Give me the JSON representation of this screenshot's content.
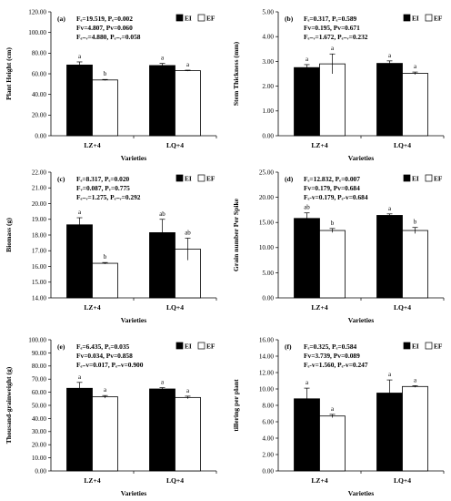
{
  "chart_data": [
    {
      "type": "bar",
      "panel": "(a)",
      "stats": [
        "Fₑ=19.519, Pₑ=0.002",
        "Fv=4.807, Pv=0.060",
        "Fₑ₋ᵥ=4.880, Pₑ₋ᵥ=0.058"
      ],
      "ylabel": "Plant Height (cm)",
      "xlabel": "Varieties",
      "ylim": [
        0,
        120
      ],
      "yticks": [
        "0.00",
        "20.00",
        "40.00",
        "60.00",
        "80.00",
        "100.00",
        "120.00"
      ],
      "categories": [
        "LZ+4",
        "LQ+4"
      ],
      "legend": [
        "EI",
        "EF"
      ],
      "series": [
        {
          "name": "EI",
          "values": [
            68.5,
            68.0
          ],
          "errors": [
            3.0,
            2.0
          ],
          "letters": [
            "a",
            "a"
          ]
        },
        {
          "name": "EF",
          "values": [
            54.0,
            63.0
          ],
          "errors": [
            0.5,
            0.5
          ],
          "letters": [
            "b",
            "a"
          ]
        }
      ]
    },
    {
      "type": "bar",
      "panel": "(b)",
      "stats": [
        "Fₑ=0.317, Pₑ=0.589",
        "Fv=0.195, Pv=0.671",
        "Fₑ₋ᵥ=1.672, Pₑ₋ᵥ=0.232"
      ],
      "ylabel": "Stem Thickness (mm)",
      "xlabel": "Varieties",
      "ylim": [
        0,
        5
      ],
      "yticks": [
        "0.00",
        "1.00",
        "2.00",
        "3.00",
        "4.00",
        "5.00"
      ],
      "categories": [
        "LZ+4",
        "LQ+4"
      ],
      "legend": [
        "EI",
        "EF"
      ],
      "series": [
        {
          "name": "EI",
          "values": [
            2.75,
            2.92
          ],
          "errors": [
            0.12,
            0.1
          ],
          "letters": [
            "a",
            "a"
          ]
        },
        {
          "name": "EF",
          "values": [
            2.9,
            2.52
          ],
          "errors": [
            0.4,
            0.05
          ],
          "letters": [
            "a",
            "a"
          ]
        }
      ]
    },
    {
      "type": "bar",
      "panel": "(c)",
      "stats": [
        "Fₑ=8.317, Pₑ=0.020",
        "Fᵥ=0.087, Pᵥ=0.775",
        "Fₑ₋ᵥ=1.275, Pₑ₋ᵥ=0.292"
      ],
      "ylabel": "Biomass (g)",
      "xlabel": "Varieties",
      "ylim": [
        14,
        22
      ],
      "yticks": [
        "14.00",
        "15.00",
        "16.00",
        "17.00",
        "18.00",
        "19.00",
        "20.00",
        "21.00",
        "22.00"
      ],
      "categories": [
        "LZ+4",
        "LQ+4"
      ],
      "legend": [
        "EI",
        "EF"
      ],
      "series": [
        {
          "name": "EI",
          "values": [
            18.65,
            18.15
          ],
          "errors": [
            0.45,
            0.85
          ],
          "letters": [
            "a",
            "ab"
          ]
        },
        {
          "name": "EF",
          "values": [
            16.2,
            17.1
          ],
          "errors": [
            0.05,
            0.7
          ],
          "letters": [
            "b",
            "ab"
          ]
        }
      ]
    },
    {
      "type": "bar",
      "panel": "(d)",
      "stats": [
        "Fₑ=12.832, Pₑ=0.007",
        "Fv=0.179, Pv=0.684",
        "Fₑ-v=0.179, Pₑ-v=0.684"
      ],
      "ylabel": "Grain number Per Spike",
      "xlabel": "Varieties",
      "ylim": [
        0,
        25
      ],
      "yticks": [
        "0.00",
        "5.00",
        "10.00",
        "15.00",
        "20.00",
        "25.00"
      ],
      "categories": [
        "LZ+4",
        "LQ+4"
      ],
      "legend": [
        "EI",
        "EF"
      ],
      "series": [
        {
          "name": "EI",
          "values": [
            15.8,
            16.4
          ],
          "errors": [
            1.1,
            0.3
          ],
          "letters": [
            "ab",
            "a"
          ]
        },
        {
          "name": "EF",
          "values": [
            13.4,
            13.4
          ],
          "errors": [
            0.4,
            0.6
          ],
          "letters": [
            "b",
            "b"
          ]
        }
      ]
    },
    {
      "type": "bar",
      "panel": "(e)",
      "stats": [
        "Fₑ=6.435, Pₑ=0.035",
        "Fv=0.034, Pv=0.858",
        "Fₑ₋v=0.017, Pₑ₋v=0.900"
      ],
      "ylabel": "Thousand-grainweight (g)",
      "xlabel": "Varieties",
      "ylim": [
        0,
        100
      ],
      "yticks": [
        "0.00",
        "10.00",
        "20.00",
        "30.00",
        "40.00",
        "50.00",
        "60.00",
        "70.00",
        "80.00",
        "90.00",
        "100.00"
      ],
      "categories": [
        "LZ+4",
        "LQ+4"
      ],
      "legend": [
        "EI",
        "EF"
      ],
      "series": [
        {
          "name": "EI",
          "values": [
            63.0,
            62.5
          ],
          "errors": [
            4.5,
            1.0
          ],
          "letters": [
            "a",
            "a"
          ]
        },
        {
          "name": "EF",
          "values": [
            56.5,
            56.0
          ],
          "errors": [
            1.0,
            1.0
          ],
          "letters": [
            "a",
            "a"
          ]
        }
      ]
    },
    {
      "type": "bar",
      "panel": "(f)",
      "stats": [
        "Fₑ=0.325, Pₑ=0.584",
        "Fv=3.739, Pv=0.089",
        "Fₑ-v=1.560, Pₑ-v=0.247"
      ],
      "ylabel": "tillering per plant",
      "xlabel": "Varieties",
      "ylim": [
        0,
        16
      ],
      "yticks": [
        "0.00",
        "2.00",
        "4.00",
        "6.00",
        "8.00",
        "10.00",
        "12.00",
        "14.00",
        "16.00"
      ],
      "categories": [
        "LZ+4",
        "LQ+4"
      ],
      "legend": [
        "EI",
        "EF"
      ],
      "series": [
        {
          "name": "EI",
          "values": [
            8.8,
            9.5
          ],
          "errors": [
            1.3,
            1.6
          ],
          "letters": [
            "a",
            "a"
          ]
        },
        {
          "name": "EF",
          "values": [
            6.7,
            10.3
          ],
          "errors": [
            0.2,
            0.1
          ],
          "letters": [
            "a",
            "a"
          ]
        }
      ]
    }
  ],
  "colors": {
    "EI": "#000000",
    "EF": "#ffffff",
    "axis": "#000000"
  }
}
